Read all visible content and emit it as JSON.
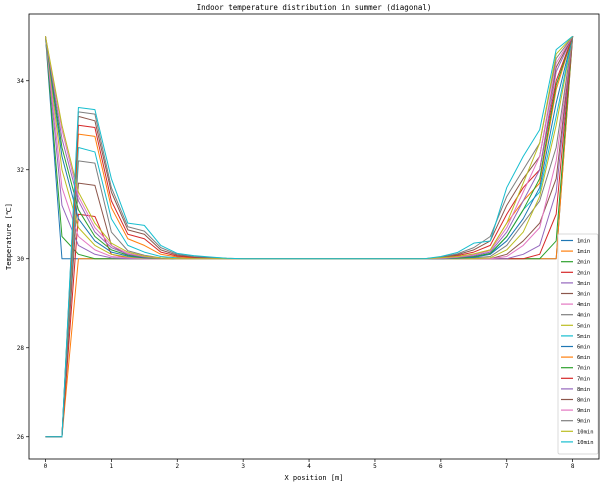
{
  "chart_data": {
    "type": "line",
    "title": "Indoor temperature distribution in summer (diagonal)",
    "xlabel": "X position [m]",
    "ylabel": "Temperature [℃]",
    "xlim": [
      -0.25,
      8.4
    ],
    "ylim": [
      25.5,
      35.5
    ],
    "xticks": [
      0,
      1,
      2,
      3,
      4,
      5,
      6,
      7,
      8
    ],
    "xtick_labels": [
      "0",
      "1",
      "2",
      "3",
      "4",
      "5",
      "6",
      "7",
      "8"
    ],
    "yticks": [
      26,
      28,
      30,
      32,
      34
    ],
    "ytick_labels": [
      "26",
      "28",
      "30",
      "32",
      "34"
    ],
    "grid": false,
    "legend_position": "lower-right",
    "x": [
      0,
      0.25,
      0.5,
      0.75,
      1.0,
      1.25,
      1.5,
      1.75,
      2.0,
      2.25,
      2.5,
      2.75,
      3.0,
      3.25,
      3.5,
      3.75,
      4.0,
      4.25,
      4.5,
      4.75,
      5.0,
      5.25,
      5.5,
      5.75,
      6.0,
      6.25,
      6.5,
      6.75,
      7.0,
      7.25,
      7.5,
      7.75,
      8.0
    ],
    "series": [
      {
        "name": "1min",
        "color": "#1f77b4",
        "values": [
          35,
          30,
          30,
          30,
          30,
          30,
          30,
          30,
          30,
          30,
          30,
          30,
          30,
          30,
          30,
          30,
          30,
          30,
          30,
          30,
          30,
          30,
          30,
          30,
          30,
          30,
          30,
          30,
          30,
          30,
          30,
          30,
          35
        ]
      },
      {
        "name": "1min",
        "color": "#ff7f0e",
        "values": [
          26,
          26,
          30,
          30,
          30,
          30,
          30,
          30,
          30,
          30,
          30,
          30,
          30,
          30,
          30,
          30,
          30,
          30,
          30,
          30,
          30,
          30,
          30,
          30,
          30,
          30,
          30,
          30,
          30,
          30,
          30,
          30,
          35
        ]
      },
      {
        "name": "2min",
        "color": "#2ca02c",
        "values": [
          35,
          30.5,
          30.1,
          30,
          30,
          30,
          30,
          30,
          30,
          30,
          30,
          30,
          30,
          30,
          30,
          30,
          30,
          30,
          30,
          30,
          30,
          30,
          30,
          30,
          30,
          30,
          30,
          30,
          30,
          30,
          30,
          30.4,
          35
        ]
      },
      {
        "name": "2min",
        "color": "#d62728",
        "values": [
          26,
          26,
          31,
          30.95,
          30.1,
          30.02,
          30,
          30,
          30,
          30,
          30,
          30,
          30,
          30,
          30,
          30,
          30,
          30,
          30,
          30,
          30,
          30,
          30,
          30,
          30,
          30,
          30,
          30,
          30,
          30,
          30.1,
          31,
          35
        ]
      },
      {
        "name": "3min",
        "color": "#9467bd",
        "values": [
          35,
          31.2,
          30.3,
          30.1,
          30.02,
          30,
          30,
          30,
          30,
          30,
          30,
          30,
          30,
          30,
          30,
          30,
          30,
          30,
          30,
          30,
          30,
          30,
          30,
          30,
          30,
          30,
          30,
          30,
          30,
          30.1,
          30.3,
          31.5,
          35
        ]
      },
      {
        "name": "3min",
        "color": "#8c564b",
        "values": [
          26,
          26,
          31.7,
          31.65,
          30.3,
          30.08,
          30.02,
          30,
          30,
          30,
          30,
          30,
          30,
          30,
          30,
          30,
          30,
          30,
          30,
          30,
          30,
          30,
          30,
          30,
          30,
          30,
          30,
          30,
          30.1,
          30.4,
          30.8,
          31.8,
          35
        ]
      },
      {
        "name": "4min",
        "color": "#e377c2",
        "values": [
          35,
          31.6,
          30.5,
          30.2,
          30.05,
          30.02,
          30,
          30,
          30,
          30,
          30,
          30,
          30,
          30,
          30,
          30,
          30,
          30,
          30,
          30,
          30,
          30,
          30,
          30,
          30,
          30,
          30,
          30,
          30.05,
          30.3,
          30.7,
          32.2,
          35
        ]
      },
      {
        "name": "4min",
        "color": "#7f7f7f",
        "values": [
          26,
          26,
          32.2,
          32.15,
          30.6,
          30.18,
          30.08,
          30.02,
          30,
          30,
          30,
          30,
          30,
          30,
          30,
          30,
          30,
          30,
          30,
          30,
          30,
          30,
          30,
          30,
          30,
          30,
          30.02,
          30.05,
          30.3,
          30.8,
          31.3,
          32.5,
          35
        ]
      },
      {
        "name": "5min",
        "color": "#bcbd22",
        "values": [
          35,
          32.0,
          30.7,
          30.3,
          30.1,
          30.04,
          30.01,
          30,
          30,
          30,
          30,
          30,
          30,
          30,
          30,
          30,
          30,
          30,
          30,
          30,
          30,
          30,
          30,
          30,
          30,
          30,
          30,
          30.02,
          30.2,
          30.6,
          31.4,
          33.0,
          35
        ]
      },
      {
        "name": "5min",
        "color": "#17becf",
        "values": [
          26,
          26,
          32.5,
          32.4,
          30.9,
          30.3,
          30.15,
          30.05,
          30.02,
          30,
          30,
          30,
          30,
          30,
          30,
          30,
          30,
          30,
          30,
          30,
          30,
          30,
          30,
          30,
          30,
          30.02,
          30.05,
          30.1,
          30.5,
          31.1,
          31.5,
          33.2,
          35
        ]
      },
      {
        "name": "6min",
        "color": "#1f77b4",
        "values": [
          35,
          32.3,
          30.9,
          30.4,
          30.15,
          30.06,
          30.02,
          30.01,
          30,
          30,
          30,
          30,
          30,
          30,
          30,
          30,
          30,
          30,
          30,
          30,
          30,
          30,
          30,
          30,
          30,
          30.01,
          30.03,
          30.1,
          30.4,
          30.9,
          31.6,
          33.5,
          35
        ]
      },
      {
        "name": "6min",
        "color": "#ff7f0e",
        "values": [
          26,
          26,
          32.8,
          32.75,
          31.15,
          30.45,
          30.3,
          30.1,
          30.04,
          30.02,
          30.01,
          30,
          30,
          30,
          30,
          30,
          30,
          30,
          30,
          30,
          30,
          30,
          30,
          30,
          30.01,
          30.05,
          30.1,
          30.2,
          30.8,
          31.3,
          31.7,
          33.8,
          35
        ]
      },
      {
        "name": "7min",
        "color": "#2ca02c",
        "values": [
          35,
          32.5,
          31.1,
          30.5,
          30.2,
          30.08,
          30.03,
          30.01,
          30,
          30,
          30,
          30,
          30,
          30,
          30,
          30,
          30,
          30,
          30,
          30,
          30,
          30,
          30,
          30,
          30,
          30.02,
          30.05,
          30.12,
          30.5,
          31.1,
          31.8,
          33.9,
          35
        ]
      },
      {
        "name": "7min",
        "color": "#d62728",
        "values": [
          26,
          26,
          33.0,
          32.95,
          31.3,
          30.55,
          30.45,
          30.15,
          30.06,
          30.03,
          30.01,
          30,
          30,
          30,
          30,
          30,
          30,
          30,
          30,
          30,
          30,
          30,
          30,
          30,
          30.02,
          30.07,
          30.15,
          30.3,
          31.0,
          31.6,
          32.0,
          34.0,
          35
        ]
      },
      {
        "name": "8min",
        "color": "#9467bd",
        "values": [
          35,
          32.7,
          31.3,
          30.6,
          30.25,
          30.1,
          30.04,
          30.01,
          30,
          30,
          30,
          30,
          30,
          30,
          30,
          30,
          30,
          30,
          30,
          30,
          30,
          30,
          30,
          30,
          30,
          30.03,
          30.07,
          30.15,
          30.6,
          31.3,
          32.0,
          34.2,
          35
        ]
      },
      {
        "name": "8min",
        "color": "#8c564b",
        "values": [
          26,
          26,
          33.2,
          33.1,
          31.5,
          30.65,
          30.55,
          30.2,
          30.08,
          30.04,
          30.02,
          30,
          30,
          30,
          30,
          30,
          30,
          30,
          30,
          30,
          30,
          30,
          30,
          30,
          30.03,
          30.09,
          30.2,
          30.4,
          31.2,
          31.8,
          32.3,
          34.3,
          35
        ]
      },
      {
        "name": "9min",
        "color": "#e377c2",
        "values": [
          35,
          32.9,
          31.4,
          30.7,
          30.3,
          30.12,
          30.05,
          30.02,
          30,
          30,
          30,
          30,
          30,
          30,
          30,
          30,
          30,
          30,
          30,
          30,
          30,
          30,
          30,
          30,
          30.01,
          30.04,
          30.09,
          30.18,
          30.7,
          31.5,
          32.3,
          34.4,
          35
        ]
      },
      {
        "name": "9min",
        "color": "#7f7f7f",
        "values": [
          26,
          26,
          33.3,
          33.25,
          31.6,
          30.72,
          30.62,
          30.25,
          30.1,
          30.05,
          30.03,
          30.01,
          30,
          30,
          30,
          30,
          30,
          30,
          30,
          30,
          30,
          30,
          30,
          30,
          30.04,
          30.11,
          30.25,
          30.5,
          31.4,
          32.0,
          32.6,
          34.5,
          35
        ]
      },
      {
        "name": "10min",
        "color": "#bcbd22",
        "values": [
          35,
          33.0,
          31.5,
          30.8,
          30.35,
          30.15,
          30.06,
          30.02,
          30,
          30,
          30,
          30,
          30,
          30,
          30,
          30,
          30,
          30,
          30,
          30,
          30,
          30,
          30,
          30,
          30.02,
          30.05,
          30.11,
          30.2,
          30.8,
          31.7,
          32.6,
          34.6,
          35
        ]
      },
      {
        "name": "10min",
        "color": "#17becf",
        "values": [
          26,
          26,
          33.4,
          33.35,
          31.8,
          30.8,
          30.75,
          30.3,
          30.12,
          30.07,
          30.04,
          30.01,
          30,
          30,
          30,
          30,
          30,
          30,
          30,
          30,
          30,
          30,
          30,
          30,
          30.05,
          30.14,
          30.35,
          30.4,
          31.6,
          32.3,
          32.9,
          34.7,
          35
        ]
      }
    ],
    "legend_labels": [
      "1min",
      "1min",
      "2min",
      "2min",
      "3min",
      "3min",
      "4min",
      "4min",
      "5min",
      "5min",
      "6min",
      "6min",
      "7min",
      "7min",
      "8min",
      "8min",
      "9min",
      "9min",
      "10min",
      "10min"
    ]
  }
}
